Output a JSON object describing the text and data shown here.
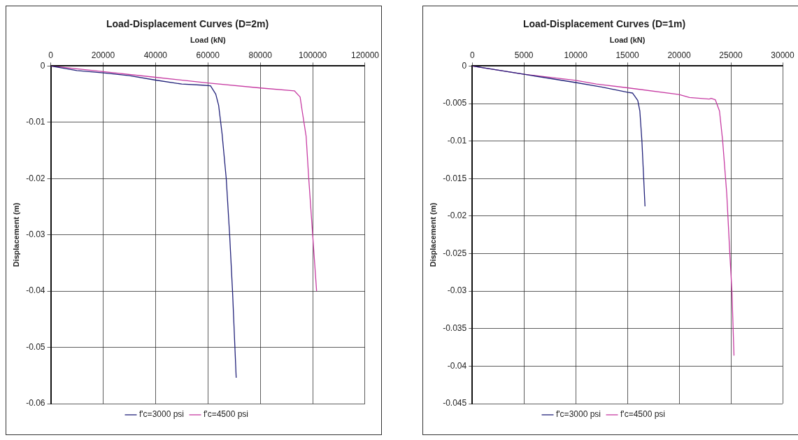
{
  "chart_data": [
    {
      "type": "line",
      "title": "Load-Displacement Curves (D=2m)",
      "xlabel": "Load (kN)",
      "ylabel": "Displacement (m)",
      "xlim": [
        0,
        120000
      ],
      "xticks": [
        0,
        20000,
        40000,
        60000,
        80000,
        100000,
        120000
      ],
      "ylim": [
        -0.06,
        0
      ],
      "yticks": [
        0,
        -0.01,
        -0.02,
        -0.03,
        -0.04,
        -0.05,
        -0.06
      ],
      "grid": true,
      "legend": "bottom",
      "marker": "none",
      "line_style": "solid",
      "series": [
        {
          "name": "f'c=3000 psi",
          "color": "#22227a",
          "x": [
            0,
            10000,
            20000,
            30000,
            40000,
            50000,
            58000,
            61000,
            63000,
            64100,
            65400,
            67000,
            68300,
            69400,
            70800
          ],
          "values": [
            0,
            -0.0008,
            -0.0012,
            -0.0017,
            -0.0025,
            -0.0032,
            -0.0034,
            -0.0035,
            -0.005,
            -0.007,
            -0.012,
            -0.02,
            -0.03,
            -0.04,
            -0.0554
          ]
        },
        {
          "name": "f'c=4500 psi",
          "color": "#c73ca3",
          "x": [
            0,
            20000,
            40000,
            60000,
            80000,
            93000,
            95200,
            96000,
            97500,
            98500,
            100000,
            101500
          ],
          "values": [
            0,
            -0.001,
            -0.002,
            -0.003,
            -0.0039,
            -0.0044,
            -0.0055,
            -0.008,
            -0.0125,
            -0.02,
            -0.03,
            -0.04
          ]
        }
      ]
    },
    {
      "type": "line",
      "title": "Load-Displacement Curves (D=1m)",
      "xlabel": "Load (kN)",
      "ylabel": "Displacement (m)",
      "xlim": [
        0,
        30000
      ],
      "xticks": [
        0,
        5000,
        10000,
        15000,
        20000,
        25000,
        30000
      ],
      "ylim": [
        -0.045,
        0
      ],
      "yticks": [
        0,
        -0.005,
        -0.01,
        -0.015,
        -0.02,
        -0.025,
        -0.03,
        -0.035,
        -0.04,
        -0.045
      ],
      "grid": true,
      "legend": "bottom",
      "marker": "none",
      "line_style": "solid",
      "series": [
        {
          "name": "f'c=3000 psi",
          "color": "#22227a",
          "x": [
            0,
            5000,
            10000,
            12500,
            15000,
            15500,
            16000,
            16200,
            16400,
            16700
          ],
          "values": [
            0,
            -0.0011,
            -0.0022,
            -0.0028,
            -0.0035,
            -0.0036,
            -0.0046,
            -0.006,
            -0.01,
            -0.0187
          ]
        },
        {
          "name": "f'c=4500 psi",
          "color": "#c73ca3",
          "x": [
            0,
            5000,
            10000,
            12000,
            15000,
            20000,
            21000,
            22900,
            23100,
            23500,
            23900,
            24200,
            24600,
            24900,
            25100,
            25300
          ],
          "values": [
            0,
            -0.0011,
            -0.0019,
            -0.0024,
            -0.0029,
            -0.0038,
            -0.0042,
            -0.0044,
            -0.0043,
            -0.0045,
            -0.006,
            -0.0099,
            -0.017,
            -0.0251,
            -0.03,
            -0.0386
          ]
        }
      ]
    }
  ]
}
